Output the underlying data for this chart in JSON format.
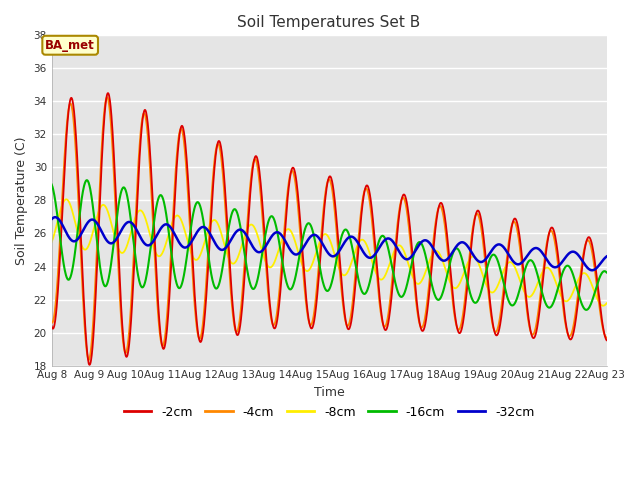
{
  "title": "Soil Temperatures Set B",
  "xlabel": "Time",
  "ylabel": "Soil Temperature (C)",
  "xlim": [
    0,
    15
  ],
  "ylim": [
    18,
    38
  ],
  "yticks": [
    18,
    20,
    22,
    24,
    26,
    28,
    30,
    32,
    34,
    36,
    38
  ],
  "xtick_labels": [
    "Aug 8",
    "Aug 9",
    "Aug 10",
    "Aug 11",
    "Aug 12",
    "Aug 13",
    "Aug 14",
    "Aug 15",
    "Aug 16",
    "Aug 17",
    "Aug 18",
    "Aug 19",
    "Aug 20",
    "Aug 21",
    "Aug 22",
    "Aug 23"
  ],
  "legend_labels": [
    "-2cm",
    "-4cm",
    "-8cm",
    "-16cm",
    "-32cm"
  ],
  "line_colors": [
    "#dd0000",
    "#ff8800",
    "#ffee00",
    "#00bb00",
    "#0000cc"
  ],
  "line_widths": [
    1.3,
    1.3,
    1.3,
    1.5,
    1.8
  ],
  "annotation_text": "BA_met",
  "bg_color": "#e8e8e8"
}
